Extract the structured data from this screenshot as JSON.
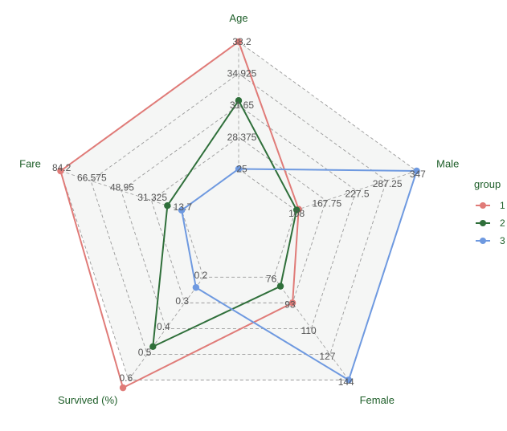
{
  "chart_data": {
    "type": "radar",
    "axes": [
      {
        "name": "Age",
        "ticks": [
          "25",
          "28.375",
          "31.65",
          "34.925",
          "38.2"
        ],
        "range": [
          25,
          38.2
        ]
      },
      {
        "name": "Male",
        "ticks": [
          "108",
          "167.75",
          "227.5",
          "287.25",
          "347"
        ],
        "range": [
          108,
          347
        ]
      },
      {
        "name": "Female",
        "ticks": [
          "76",
          "93",
          "110",
          "127",
          "144"
        ],
        "range": [
          76,
          144
        ]
      },
      {
        "name": "Survived (%)",
        "ticks": [
          "0.2",
          "0.3",
          "0.4",
          "0.5",
          "0.6"
        ],
        "range": [
          0.2,
          0.6
        ]
      },
      {
        "name": "Fare",
        "ticks": [
          "13.7",
          "31.325",
          "48.95",
          "66.575",
          "84.2"
        ],
        "range": [
          13.7,
          84.2
        ]
      }
    ],
    "series": [
      {
        "name": "1",
        "color": "#e07b78",
        "values": [
          38.2,
          114,
          93,
          0.63,
          84.2
        ]
      },
      {
        "name": "2",
        "color": "#2f6f3a",
        "values": [
          32.1,
          110,
          82,
          0.47,
          22
        ]
      },
      {
        "name": "3",
        "color": "#6e99e0",
        "values": [
          25,
          347,
          144,
          0.24,
          13.7
        ]
      }
    ],
    "legend": {
      "title": "group",
      "position": "right"
    },
    "grid": true
  }
}
